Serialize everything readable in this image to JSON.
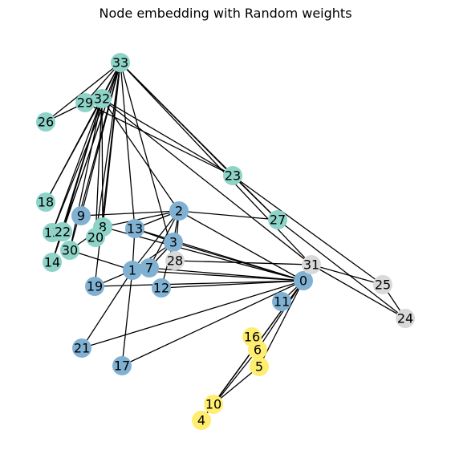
{
  "title": "Node embedding with Random weights",
  "colors": {
    "teal": "#8dd3c7",
    "blue": "#80b1d3",
    "gray": "#d9d9d9",
    "yellow": "#ffed6f",
    "edge": "#000000"
  },
  "nodes": [
    {
      "id": "0",
      "group": "blue"
    },
    {
      "id": "1",
      "group": "blue"
    },
    {
      "id": "2",
      "group": "blue"
    },
    {
      "id": "3",
      "group": "blue"
    },
    {
      "id": "4",
      "group": "yellow"
    },
    {
      "id": "5",
      "group": "yellow"
    },
    {
      "id": "6",
      "group": "yellow"
    },
    {
      "id": "7",
      "group": "blue"
    },
    {
      "id": "8",
      "group": "teal"
    },
    {
      "id": "9",
      "group": "blue"
    },
    {
      "id": "10",
      "group": "yellow"
    },
    {
      "id": "11",
      "group": "blue"
    },
    {
      "id": "12",
      "group": "blue"
    },
    {
      "id": "13",
      "group": "blue"
    },
    {
      "id": "14",
      "group": "teal"
    },
    {
      "id": "15",
      "group": "teal"
    },
    {
      "id": "16",
      "group": "yellow"
    },
    {
      "id": "17",
      "group": "blue"
    },
    {
      "id": "18",
      "group": "teal"
    },
    {
      "id": "19",
      "group": "blue"
    },
    {
      "id": "20",
      "group": "teal"
    },
    {
      "id": "21",
      "group": "blue"
    },
    {
      "id": "22",
      "group": "teal"
    },
    {
      "id": "23",
      "group": "teal"
    },
    {
      "id": "24",
      "group": "gray"
    },
    {
      "id": "25",
      "group": "gray"
    },
    {
      "id": "26",
      "group": "teal"
    },
    {
      "id": "27",
      "group": "teal"
    },
    {
      "id": "28",
      "group": "gray"
    },
    {
      "id": "29",
      "group": "teal"
    },
    {
      "id": "30",
      "group": "teal"
    },
    {
      "id": "31",
      "group": "gray"
    },
    {
      "id": "32",
      "group": "teal"
    },
    {
      "id": "33",
      "group": "teal"
    }
  ],
  "edges": [
    [
      "0",
      "1"
    ],
    [
      "0",
      "2"
    ],
    [
      "0",
      "3"
    ],
    [
      "0",
      "4"
    ],
    [
      "0",
      "5"
    ],
    [
      "0",
      "6"
    ],
    [
      "0",
      "7"
    ],
    [
      "0",
      "8"
    ],
    [
      "0",
      "10"
    ],
    [
      "0",
      "11"
    ],
    [
      "0",
      "12"
    ],
    [
      "0",
      "13"
    ],
    [
      "0",
      "17"
    ],
    [
      "0",
      "19"
    ],
    [
      "0",
      "21"
    ],
    [
      "0",
      "31"
    ],
    [
      "1",
      "2"
    ],
    [
      "1",
      "3"
    ],
    [
      "1",
      "7"
    ],
    [
      "1",
      "13"
    ],
    [
      "1",
      "17"
    ],
    [
      "1",
      "19"
    ],
    [
      "1",
      "21"
    ],
    [
      "1",
      "30"
    ],
    [
      "2",
      "3"
    ],
    [
      "2",
      "7"
    ],
    [
      "2",
      "8"
    ],
    [
      "2",
      "9"
    ],
    [
      "2",
      "13"
    ],
    [
      "2",
      "27"
    ],
    [
      "2",
      "28"
    ],
    [
      "2",
      "32"
    ],
    [
      "3",
      "7"
    ],
    [
      "3",
      "12"
    ],
    [
      "3",
      "13"
    ],
    [
      "4",
      "6"
    ],
    [
      "4",
      "10"
    ],
    [
      "5",
      "6"
    ],
    [
      "5",
      "10"
    ],
    [
      "5",
      "16"
    ],
    [
      "6",
      "16"
    ],
    [
      "8",
      "30"
    ],
    [
      "8",
      "32"
    ],
    [
      "8",
      "33"
    ],
    [
      "9",
      "33"
    ],
    [
      "13",
      "33"
    ],
    [
      "14",
      "32"
    ],
    [
      "14",
      "33"
    ],
    [
      "15",
      "32"
    ],
    [
      "15",
      "33"
    ],
    [
      "18",
      "32"
    ],
    [
      "18",
      "33"
    ],
    [
      "19",
      "33"
    ],
    [
      "20",
      "32"
    ],
    [
      "20",
      "33"
    ],
    [
      "22",
      "32"
    ],
    [
      "22",
      "33"
    ],
    [
      "23",
      "25"
    ],
    [
      "23",
      "27"
    ],
    [
      "23",
      "29"
    ],
    [
      "23",
      "32"
    ],
    [
      "23",
      "33"
    ],
    [
      "24",
      "25"
    ],
    [
      "24",
      "27"
    ],
    [
      "24",
      "31"
    ],
    [
      "25",
      "31"
    ],
    [
      "26",
      "29"
    ],
    [
      "26",
      "33"
    ],
    [
      "27",
      "33"
    ],
    [
      "28",
      "31"
    ],
    [
      "28",
      "33"
    ],
    [
      "29",
      "32"
    ],
    [
      "29",
      "33"
    ],
    [
      "30",
      "32"
    ],
    [
      "30",
      "33"
    ],
    [
      "31",
      "32"
    ],
    [
      "31",
      "33"
    ],
    [
      "32",
      "33"
    ]
  ]
}
